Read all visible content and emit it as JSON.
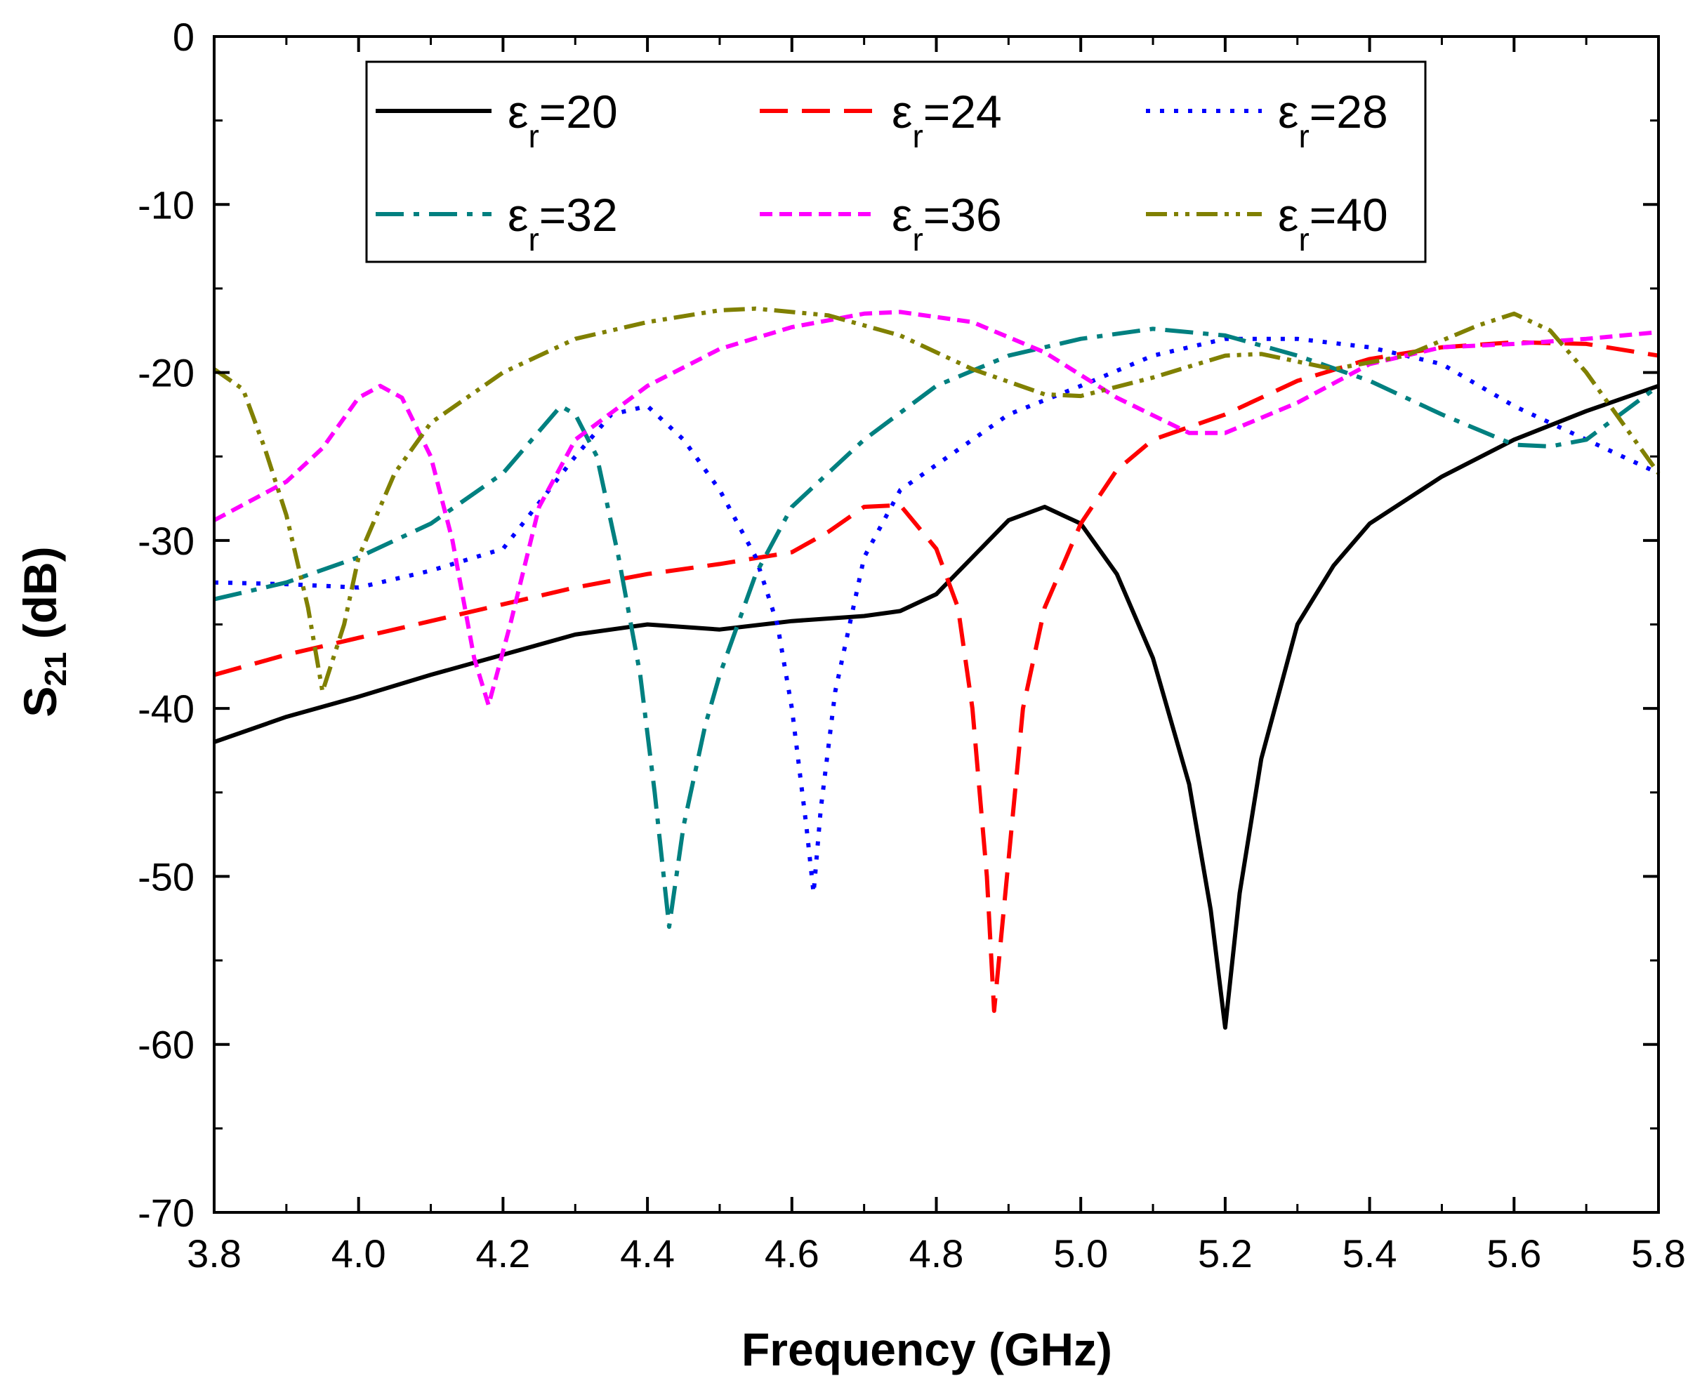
{
  "chart_data": {
    "type": "line",
    "title": "",
    "xlabel": "Frequency (GHz)",
    "ylabel": {
      "main": "S",
      "sub": "21",
      "unit": " (dB)"
    },
    "xlim": [
      3.8,
      5.8
    ],
    "ylim": [
      -70,
      0
    ],
    "xticks": [
      3.8,
      4.0,
      4.2,
      4.4,
      4.6,
      4.8,
      5.0,
      5.2,
      5.4,
      5.6,
      5.8
    ],
    "xtick_labels": [
      "3.8",
      "4.0",
      "4.2",
      "4.4",
      "4.6",
      "4.8",
      "5.0",
      "5.2",
      "5.4",
      "5.6",
      "5.8"
    ],
    "yticks": [
      0,
      -10,
      -20,
      -30,
      -40,
      -50,
      -60,
      -70
    ],
    "ytick_labels": [
      "0",
      "-10",
      "-20",
      "-30",
      "-40",
      "-50",
      "-60",
      "-70"
    ],
    "grid": false,
    "legend_position": "top",
    "series": [
      {
        "name": "εr=20",
        "symbol": "ε",
        "subscript": "r",
        "value_text": "=20",
        "color": "#000000",
        "style": "solid",
        "points": [
          [
            3.8,
            -42
          ],
          [
            3.9,
            -40.5
          ],
          [
            4.0,
            -39.3
          ],
          [
            4.1,
            -38
          ],
          [
            4.2,
            -36.8
          ],
          [
            4.3,
            -35.6
          ],
          [
            4.4,
            -35
          ],
          [
            4.5,
            -35.3
          ],
          [
            4.6,
            -34.8
          ],
          [
            4.7,
            -34.5
          ],
          [
            4.75,
            -34.2
          ],
          [
            4.8,
            -33.2
          ],
          [
            4.85,
            -31
          ],
          [
            4.9,
            -28.8
          ],
          [
            4.95,
            -28
          ],
          [
            5.0,
            -29
          ],
          [
            5.05,
            -32
          ],
          [
            5.1,
            -37
          ],
          [
            5.15,
            -44.5
          ],
          [
            5.18,
            -52
          ],
          [
            5.2,
            -59
          ],
          [
            5.22,
            -51
          ],
          [
            5.25,
            -43
          ],
          [
            5.3,
            -35
          ],
          [
            5.35,
            -31.5
          ],
          [
            5.4,
            -29
          ],
          [
            5.5,
            -26.2
          ],
          [
            5.6,
            -24
          ],
          [
            5.7,
            -22.3
          ],
          [
            5.8,
            -20.8
          ]
        ]
      },
      {
        "name": "εr=24",
        "symbol": "ε",
        "subscript": "r",
        "value_text": "=24",
        "color": "#ff0000",
        "style": "dash",
        "points": [
          [
            3.8,
            -38
          ],
          [
            3.9,
            -36.8
          ],
          [
            4.0,
            -35.8
          ],
          [
            4.1,
            -34.8
          ],
          [
            4.2,
            -33.8
          ],
          [
            4.3,
            -32.8
          ],
          [
            4.4,
            -32
          ],
          [
            4.5,
            -31.4
          ],
          [
            4.6,
            -30.7
          ],
          [
            4.65,
            -29.5
          ],
          [
            4.7,
            -28
          ],
          [
            4.75,
            -27.9
          ],
          [
            4.8,
            -30.5
          ],
          [
            4.83,
            -34
          ],
          [
            4.85,
            -40
          ],
          [
            4.87,
            -50
          ],
          [
            4.88,
            -58
          ],
          [
            4.9,
            -49
          ],
          [
            4.92,
            -40
          ],
          [
            4.95,
            -34
          ],
          [
            5.0,
            -29
          ],
          [
            5.05,
            -25.8
          ],
          [
            5.1,
            -24
          ],
          [
            5.2,
            -22.5
          ],
          [
            5.3,
            -20.5
          ],
          [
            5.4,
            -19.2
          ],
          [
            5.5,
            -18.5
          ],
          [
            5.6,
            -18.2
          ],
          [
            5.7,
            -18.3
          ],
          [
            5.8,
            -19
          ]
        ]
      },
      {
        "name": "εr=28",
        "symbol": "ε",
        "subscript": "r",
        "value_text": "=28",
        "color": "#0000ff",
        "style": "dot",
        "points": [
          [
            3.8,
            -32.5
          ],
          [
            3.9,
            -32.6
          ],
          [
            4.0,
            -32.8
          ],
          [
            4.1,
            -31.8
          ],
          [
            4.2,
            -30.5
          ],
          [
            4.3,
            -25
          ],
          [
            4.35,
            -22.5
          ],
          [
            4.4,
            -22
          ],
          [
            4.45,
            -24
          ],
          [
            4.5,
            -27
          ],
          [
            4.55,
            -31
          ],
          [
            4.58,
            -35
          ],
          [
            4.6,
            -40
          ],
          [
            4.62,
            -47
          ],
          [
            4.63,
            -51
          ],
          [
            4.64,
            -46
          ],
          [
            4.66,
            -39
          ],
          [
            4.7,
            -31
          ],
          [
            4.75,
            -27
          ],
          [
            4.8,
            -25.5
          ],
          [
            4.9,
            -22.5
          ],
          [
            5.0,
            -20.8
          ],
          [
            5.1,
            -19
          ],
          [
            5.2,
            -18
          ],
          [
            5.3,
            -18
          ],
          [
            5.4,
            -18.5
          ],
          [
            5.5,
            -19.5
          ],
          [
            5.6,
            -22
          ],
          [
            5.7,
            -24
          ],
          [
            5.8,
            -26
          ]
        ]
      },
      {
        "name": "εr=32",
        "symbol": "ε",
        "subscript": "r",
        "value_text": "=32",
        "color": "#008080",
        "style": "dashdot",
        "points": [
          [
            3.8,
            -33.5
          ],
          [
            3.9,
            -32.5
          ],
          [
            4.0,
            -31
          ],
          [
            4.1,
            -29
          ],
          [
            4.2,
            -26
          ],
          [
            4.25,
            -23.5
          ],
          [
            4.28,
            -22
          ],
          [
            4.3,
            -22.5
          ],
          [
            4.33,
            -25
          ],
          [
            4.36,
            -31
          ],
          [
            4.39,
            -38
          ],
          [
            4.41,
            -45
          ],
          [
            4.43,
            -53
          ],
          [
            4.45,
            -47
          ],
          [
            4.48,
            -41
          ],
          [
            4.5,
            -38
          ],
          [
            4.55,
            -32
          ],
          [
            4.6,
            -28
          ],
          [
            4.65,
            -26
          ],
          [
            4.7,
            -24
          ],
          [
            4.8,
            -20.8
          ],
          [
            4.9,
            -19
          ],
          [
            5.0,
            -18
          ],
          [
            5.1,
            -17.4
          ],
          [
            5.2,
            -17.8
          ],
          [
            5.3,
            -19
          ],
          [
            5.4,
            -20.5
          ],
          [
            5.5,
            -22.5
          ],
          [
            5.6,
            -24.3
          ],
          [
            5.65,
            -24.4
          ],
          [
            5.7,
            -24
          ],
          [
            5.8,
            -20.8
          ]
        ]
      },
      {
        "name": "εr=36",
        "symbol": "ε",
        "subscript": "r",
        "value_text": "=36",
        "color": "#ff00ff",
        "style": "shortdash",
        "points": [
          [
            3.8,
            -28.8
          ],
          [
            3.9,
            -26.5
          ],
          [
            3.95,
            -24.5
          ],
          [
            4.0,
            -21.5
          ],
          [
            4.03,
            -20.8
          ],
          [
            4.06,
            -21.5
          ],
          [
            4.1,
            -25
          ],
          [
            4.13,
            -30
          ],
          [
            4.16,
            -37
          ],
          [
            4.18,
            -39.8
          ],
          [
            4.21,
            -35
          ],
          [
            4.25,
            -28
          ],
          [
            4.3,
            -24
          ],
          [
            4.4,
            -20.8
          ],
          [
            4.5,
            -18.6
          ],
          [
            4.6,
            -17.3
          ],
          [
            4.7,
            -16.5
          ],
          [
            4.75,
            -16.4
          ],
          [
            4.85,
            -17
          ],
          [
            4.95,
            -18.8
          ],
          [
            5.05,
            -21.5
          ],
          [
            5.15,
            -23.6
          ],
          [
            5.2,
            -23.6
          ],
          [
            5.3,
            -21.8
          ],
          [
            5.4,
            -19.5
          ],
          [
            5.5,
            -18.5
          ],
          [
            5.6,
            -18.3
          ],
          [
            5.7,
            -18
          ],
          [
            5.8,
            -17.6
          ]
        ]
      },
      {
        "name": "εr=40",
        "symbol": "ε",
        "subscript": "r",
        "value_text": "=40",
        "color": "#808000",
        "style": "dashdotdot",
        "points": [
          [
            3.8,
            -19.8
          ],
          [
            3.84,
            -21
          ],
          [
            3.87,
            -24.5
          ],
          [
            3.9,
            -28.5
          ],
          [
            3.93,
            -34
          ],
          [
            3.95,
            -39
          ],
          [
            3.98,
            -35
          ],
          [
            4.0,
            -31
          ],
          [
            4.05,
            -26
          ],
          [
            4.1,
            -23
          ],
          [
            4.2,
            -20
          ],
          [
            4.3,
            -18
          ],
          [
            4.4,
            -17
          ],
          [
            4.5,
            -16.3
          ],
          [
            4.55,
            -16.2
          ],
          [
            4.65,
            -16.6
          ],
          [
            4.75,
            -17.8
          ],
          [
            4.85,
            -19.8
          ],
          [
            4.95,
            -21.3
          ],
          [
            5.0,
            -21.4
          ],
          [
            5.1,
            -20.3
          ],
          [
            5.2,
            -19
          ],
          [
            5.25,
            -18.9
          ],
          [
            5.35,
            -19.8
          ],
          [
            5.45,
            -19
          ],
          [
            5.55,
            -17.2
          ],
          [
            5.6,
            -16.5
          ],
          [
            5.65,
            -17.5
          ],
          [
            5.7,
            -20
          ],
          [
            5.75,
            -23
          ],
          [
            5.8,
            -26
          ]
        ]
      }
    ]
  }
}
